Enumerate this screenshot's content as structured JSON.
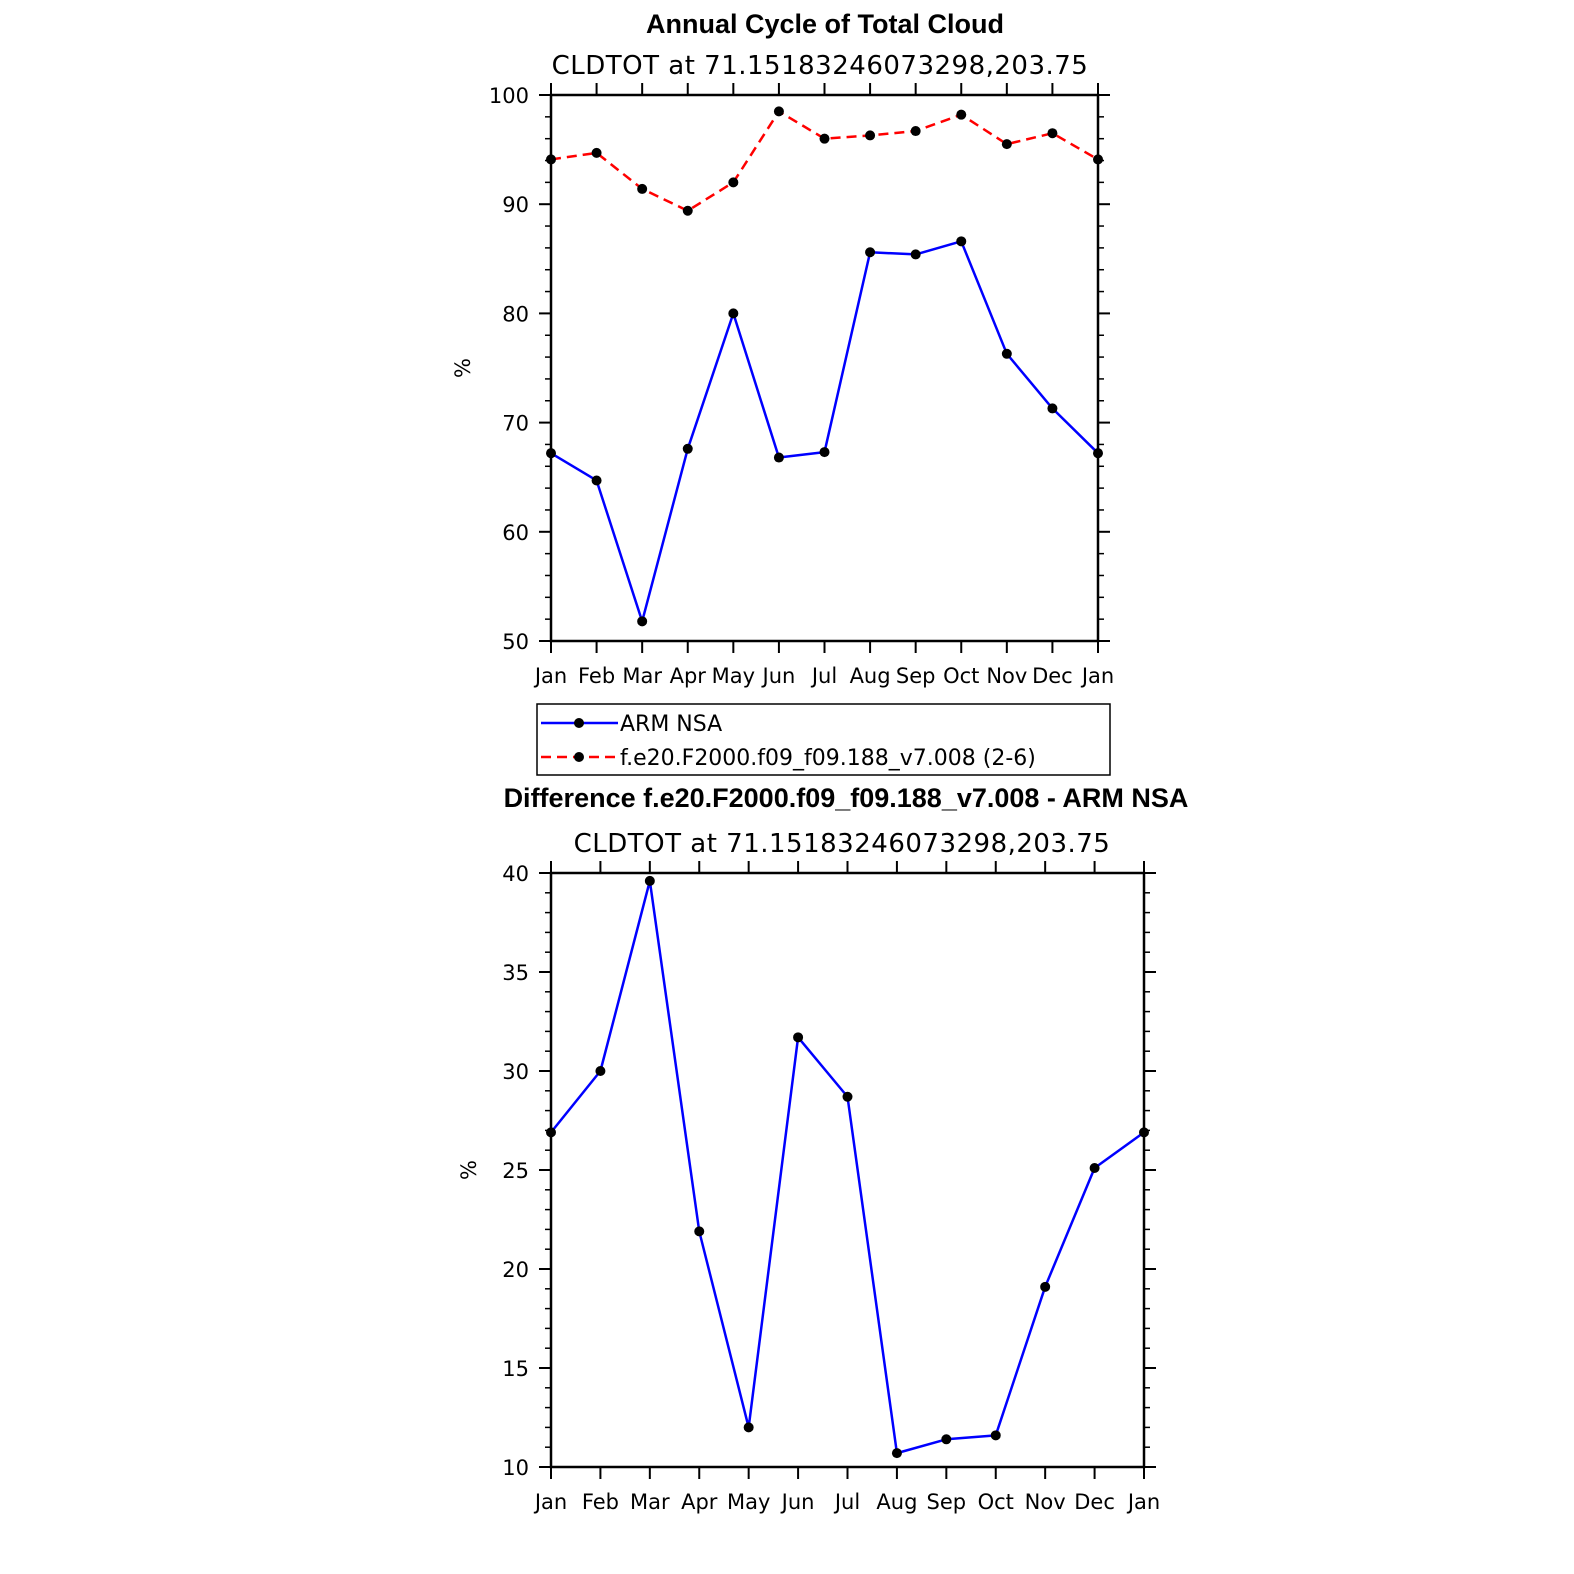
{
  "chart_data": [
    {
      "type": "line",
      "title": "Annual Cycle of Total Cloud",
      "subtitle": "CLDTOT at 71.15183246073298,203.75",
      "ylabel": "%",
      "xlabel": "",
      "categories": [
        "Jan",
        "Feb",
        "Mar",
        "Apr",
        "May",
        "Jun",
        "Jul",
        "Aug",
        "Sep",
        "Oct",
        "Nov",
        "Dec",
        "Jan"
      ],
      "ylim": [
        50,
        100
      ],
      "yticks": [
        50,
        60,
        70,
        80,
        90,
        100
      ],
      "series": [
        {
          "name": "ARM NSA",
          "color": "#0000ff",
          "dash": "solid",
          "values": [
            67.2,
            64.7,
            51.8,
            67.6,
            80.0,
            66.8,
            67.3,
            85.6,
            85.4,
            86.6,
            76.3,
            71.3,
            67.2
          ]
        },
        {
          "name": "f.e20.F2000.f09_f09.188_v7.008 (2-6)",
          "color": "#ff0000",
          "dash": "dashed",
          "values": [
            94.1,
            94.7,
            91.4,
            89.4,
            92.0,
            98.5,
            96.0,
            96.3,
            96.7,
            98.2,
            95.5,
            96.5,
            94.1
          ]
        }
      ],
      "legend": "below"
    },
    {
      "type": "line",
      "title": "Difference f.e20.F2000.f09_f09.188_v7.008 - ARM NSA",
      "subtitle": "CLDTOT at 71.15183246073298,203.75",
      "ylabel": "%",
      "xlabel": "",
      "categories": [
        "Jan",
        "Feb",
        "Mar",
        "Apr",
        "May",
        "Jun",
        "Jul",
        "Aug",
        "Sep",
        "Oct",
        "Nov",
        "Dec",
        "Jan"
      ],
      "ylim": [
        10,
        40
      ],
      "yticks": [
        10,
        15,
        20,
        25,
        30,
        35,
        40
      ],
      "series": [
        {
          "color": "#0000ff",
          "dash": "solid",
          "values": [
            26.9,
            30.0,
            39.6,
            21.9,
            12.0,
            31.7,
            28.7,
            10.7,
            11.4,
            11.6,
            19.1,
            25.1,
            26.9
          ]
        }
      ]
    }
  ]
}
